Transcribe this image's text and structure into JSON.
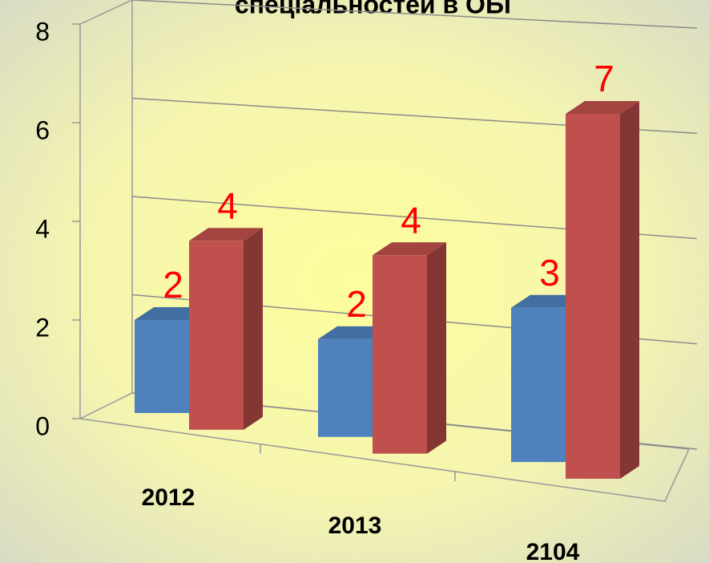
{
  "chart_data": {
    "type": "bar3d",
    "title": "спеціальностей в ОБГ",
    "categories": [
      "2012",
      "2013",
      "2104"
    ],
    "series": [
      {
        "color": "#4f81bd",
        "values": [
          2,
          2,
          3
        ]
      },
      {
        "color": "#c0504d",
        "values": [
          4,
          4,
          7
        ]
      }
    ],
    "value_label_color": "#ff0000",
    "ylim": [
      0,
      8
    ],
    "yticks": [
      0,
      2,
      4,
      6,
      8
    ],
    "grid": true
  }
}
